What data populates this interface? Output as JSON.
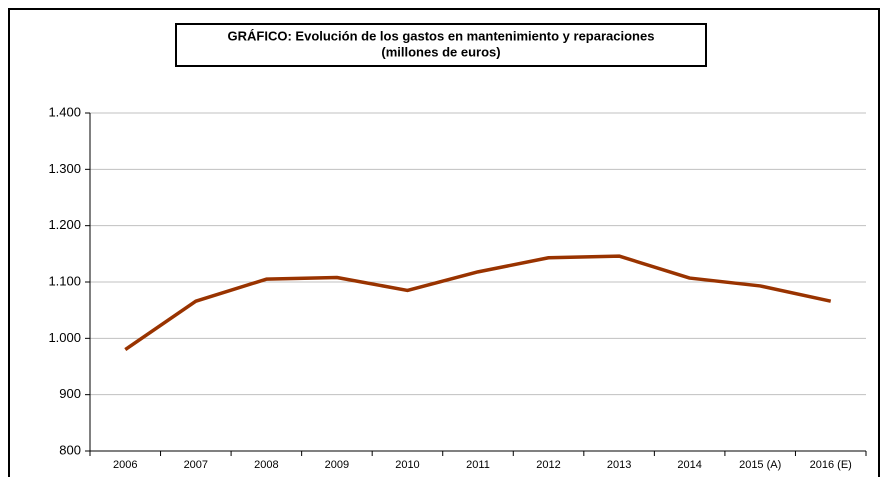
{
  "chart_data": {
    "type": "line",
    "title": "GRÁFICO: Evolución de los gastos en mantenimiento y reparaciones",
    "subtitle": "(millones de euros)",
    "categories": [
      "2006",
      "2007",
      "2008",
      "2009",
      "2010",
      "2011",
      "2012",
      "2013",
      "2014",
      "2015 (A)",
      "2016 (E)"
    ],
    "series": [
      {
        "color": "#993300",
        "values": [
          980,
          1066,
          1105,
          1108,
          1085,
          1118,
          1143,
          1146,
          1107,
          1093,
          1066
        ]
      }
    ],
    "ylim": [
      800,
      1400
    ],
    "yticks": [
      {
        "value": 800,
        "label": "800"
      },
      {
        "value": 900,
        "label": "900"
      },
      {
        "value": 1000,
        "label": "1.000"
      },
      {
        "value": 1100,
        "label": "1.100"
      },
      {
        "value": 1200,
        "label": "1.200"
      },
      {
        "value": 1300,
        "label": "1.300"
      },
      {
        "value": 1400,
        "label": "1.400"
      }
    ],
    "grid": true
  }
}
